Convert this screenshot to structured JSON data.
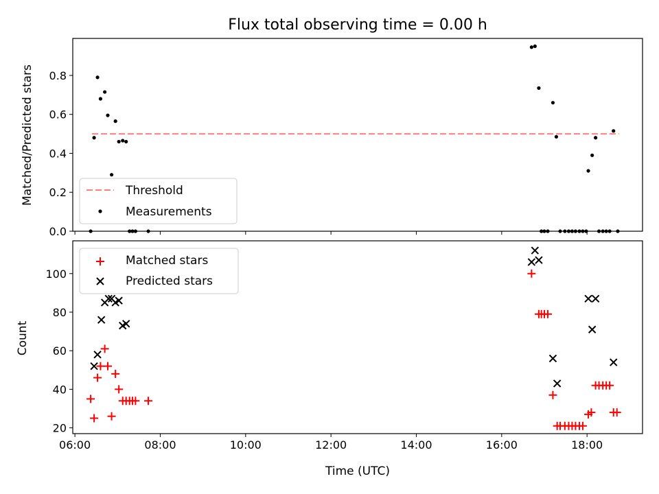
{
  "title": "Flux total observing time = 0.00 h",
  "xlabel": "Time (UTC)",
  "x_ticks": [
    "06:00",
    "08:00",
    "10:00",
    "12:00",
    "14:00",
    "16:00",
    "18:00"
  ],
  "colors": {
    "threshold": "#ff7f7f",
    "measurements": "#000000",
    "matched": "#ff0000",
    "predicted": "#000000"
  },
  "chart_data": [
    {
      "type": "scatter",
      "title": "Flux total observing time = 0.00 h",
      "xlabel": "",
      "ylabel": "Matched/Predicted stars",
      "xlim": [
        5.95,
        19.3
      ],
      "ylim": [
        0,
        0.99
      ],
      "y_ticks": [
        "0.0",
        "0.2",
        "0.4",
        "0.6",
        "0.8"
      ],
      "legend": {
        "placement": "lower-left",
        "entries": [
          "Threshold",
          "Measurements"
        ]
      },
      "threshold": {
        "name": "Threshold",
        "x": [
          6.4,
          18.75
        ],
        "y": [
          0.5,
          0.5
        ]
      },
      "series": [
        {
          "name": "Measurements",
          "points": [
            [
              6.37,
              0.0
            ],
            [
              6.45,
              0.48
            ],
            [
              6.53,
              0.79
            ],
            [
              6.6,
              0.68
            ],
            [
              6.7,
              0.715
            ],
            [
              6.77,
              0.595
            ],
            [
              6.86,
              0.29
            ],
            [
              6.95,
              0.565
            ],
            [
              7.03,
              0.46
            ],
            [
              7.12,
              0.465
            ],
            [
              7.2,
              0.46
            ],
            [
              7.28,
              0.0
            ],
            [
              7.35,
              0.0
            ],
            [
              7.42,
              0.0
            ],
            [
              7.72,
              0.0
            ],
            [
              16.7,
              0.945
            ],
            [
              16.78,
              0.95
            ],
            [
              16.87,
              0.735
            ],
            [
              16.93,
              0.0
            ],
            [
              17.0,
              0.0
            ],
            [
              17.08,
              0.0
            ],
            [
              17.2,
              0.66
            ],
            [
              17.28,
              0.485
            ],
            [
              17.37,
              0.0
            ],
            [
              17.48,
              0.0
            ],
            [
              17.57,
              0.0
            ],
            [
              17.65,
              0.0
            ],
            [
              17.73,
              0.0
            ],
            [
              17.82,
              0.0
            ],
            [
              17.9,
              0.0
            ],
            [
              17.98,
              0.0
            ],
            [
              18.03,
              0.31
            ],
            [
              18.12,
              0.39
            ],
            [
              18.2,
              0.48
            ],
            [
              18.28,
              0.0
            ],
            [
              18.37,
              0.0
            ],
            [
              18.45,
              0.0
            ],
            [
              18.53,
              0.0
            ],
            [
              18.62,
              0.515
            ],
            [
              18.72,
              0.0
            ]
          ]
        }
      ]
    },
    {
      "type": "scatter",
      "xlabel": "Time (UTC)",
      "ylabel": "Count",
      "xlim": [
        5.95,
        19.3
      ],
      "ylim": [
        17,
        117
      ],
      "y_ticks": [
        "20",
        "40",
        "60",
        "80",
        "100"
      ],
      "legend": {
        "placement": "upper-left",
        "entries": [
          "Matched stars",
          "Predicted stars"
        ]
      },
      "series": [
        {
          "name": "Matched stars",
          "marker": "+",
          "points": [
            [
              6.37,
              35
            ],
            [
              6.45,
              25
            ],
            [
              6.53,
              46
            ],
            [
              6.6,
              52
            ],
            [
              6.7,
              61
            ],
            [
              6.77,
              52
            ],
            [
              6.86,
              26
            ],
            [
              6.95,
              48
            ],
            [
              7.03,
              40
            ],
            [
              7.12,
              34
            ],
            [
              7.2,
              34
            ],
            [
              7.28,
              34
            ],
            [
              7.35,
              34
            ],
            [
              7.42,
              34
            ],
            [
              7.72,
              34
            ],
            [
              16.7,
              100
            ],
            [
              16.87,
              79
            ],
            [
              16.93,
              79
            ],
            [
              17.0,
              79
            ],
            [
              17.08,
              79
            ],
            [
              17.2,
              37
            ],
            [
              17.3,
              21
            ],
            [
              17.37,
              21
            ],
            [
              17.48,
              21
            ],
            [
              17.57,
              21
            ],
            [
              17.65,
              21
            ],
            [
              17.73,
              21
            ],
            [
              17.82,
              21
            ],
            [
              17.9,
              21
            ],
            [
              18.03,
              27
            ],
            [
              18.1,
              28
            ],
            [
              18.2,
              42
            ],
            [
              18.28,
              42
            ],
            [
              18.37,
              42
            ],
            [
              18.45,
              42
            ],
            [
              18.53,
              42
            ],
            [
              18.62,
              28
            ],
            [
              18.7,
              28
            ]
          ]
        },
        {
          "name": "Predicted stars",
          "marker": "x",
          "points": [
            [
              6.45,
              52
            ],
            [
              6.53,
              58
            ],
            [
              6.62,
              76
            ],
            [
              6.7,
              85
            ],
            [
              6.79,
              87
            ],
            [
              6.86,
              87
            ],
            [
              6.95,
              85
            ],
            [
              7.03,
              86
            ],
            [
              7.12,
              73
            ],
            [
              7.2,
              74
            ],
            [
              16.7,
              106
            ],
            [
              16.78,
              112
            ],
            [
              16.87,
              107
            ],
            [
              17.2,
              56
            ],
            [
              17.3,
              43
            ],
            [
              18.03,
              87
            ],
            [
              18.12,
              71
            ],
            [
              18.2,
              87
            ],
            [
              18.62,
              54
            ]
          ]
        }
      ]
    }
  ]
}
